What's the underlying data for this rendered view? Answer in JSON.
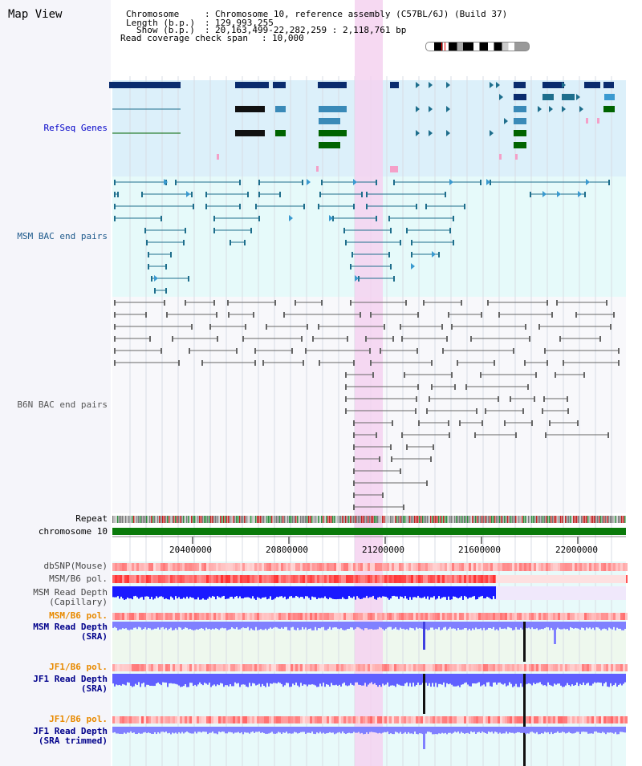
{
  "view_title": "Map View",
  "info": {
    "chromosome_label": "Chromosome",
    "chromosome_value": "Chromosome 10, reference assembly (C57BL/6J) (Build 37)",
    "length_label": "Length (b.p.)",
    "length_value": "129,993,255",
    "show_label": "Show (b.p.)",
    "show_value": "20,163,499-22,282,259 : 2,118,761 bp",
    "coverage_label": "Read coverage check span",
    "coverage_value": "10,000"
  },
  "tracks": {
    "refseq": "RefSeq Genes",
    "msm_bac": "MSM BAC end pairs",
    "b6n_bac": "B6N BAC end pairs",
    "repeat": "Repeat",
    "chromosome": "chromosome 10",
    "dbsnp": "dbSNP(Mouse)",
    "msm_b6_pol": "MSM/B6 pol.",
    "msm_depth_cap_1": "MSM Read Depth",
    "msm_depth_cap_2": "(Capillary)",
    "msm_b6_pol_2": "MSM/B6 pol.",
    "msm_depth_sra_1": "MSM Read Depth",
    "msm_depth_sra_2": "(SRA)",
    "jf1_b6_pol": "JF1/B6 pol.",
    "jf1_depth_sra_1": "JF1 Read Depth",
    "jf1_depth_sra_2": "(SRA)",
    "jf1_b6_pol_2": "JF1/B6 pol.",
    "jf1_depth_trim_1": "JF1 Read Depth",
    "jf1_depth_trim_2": "(SRA trimmed)"
  },
  "axis": {
    "ticks": [
      "20400000",
      "20800000",
      "21200000",
      "21600000",
      "22000000"
    ]
  },
  "colors": {
    "refseq_bg": "#dcf0fa",
    "msm_bg": "#e6fafa",
    "highlight": "#f5d2f0",
    "dark_blue": "#0a2c6e",
    "teal": "#1e6e8c",
    "green": "#006400",
    "orange": "#e88a00",
    "navy": "#00008b"
  }
}
